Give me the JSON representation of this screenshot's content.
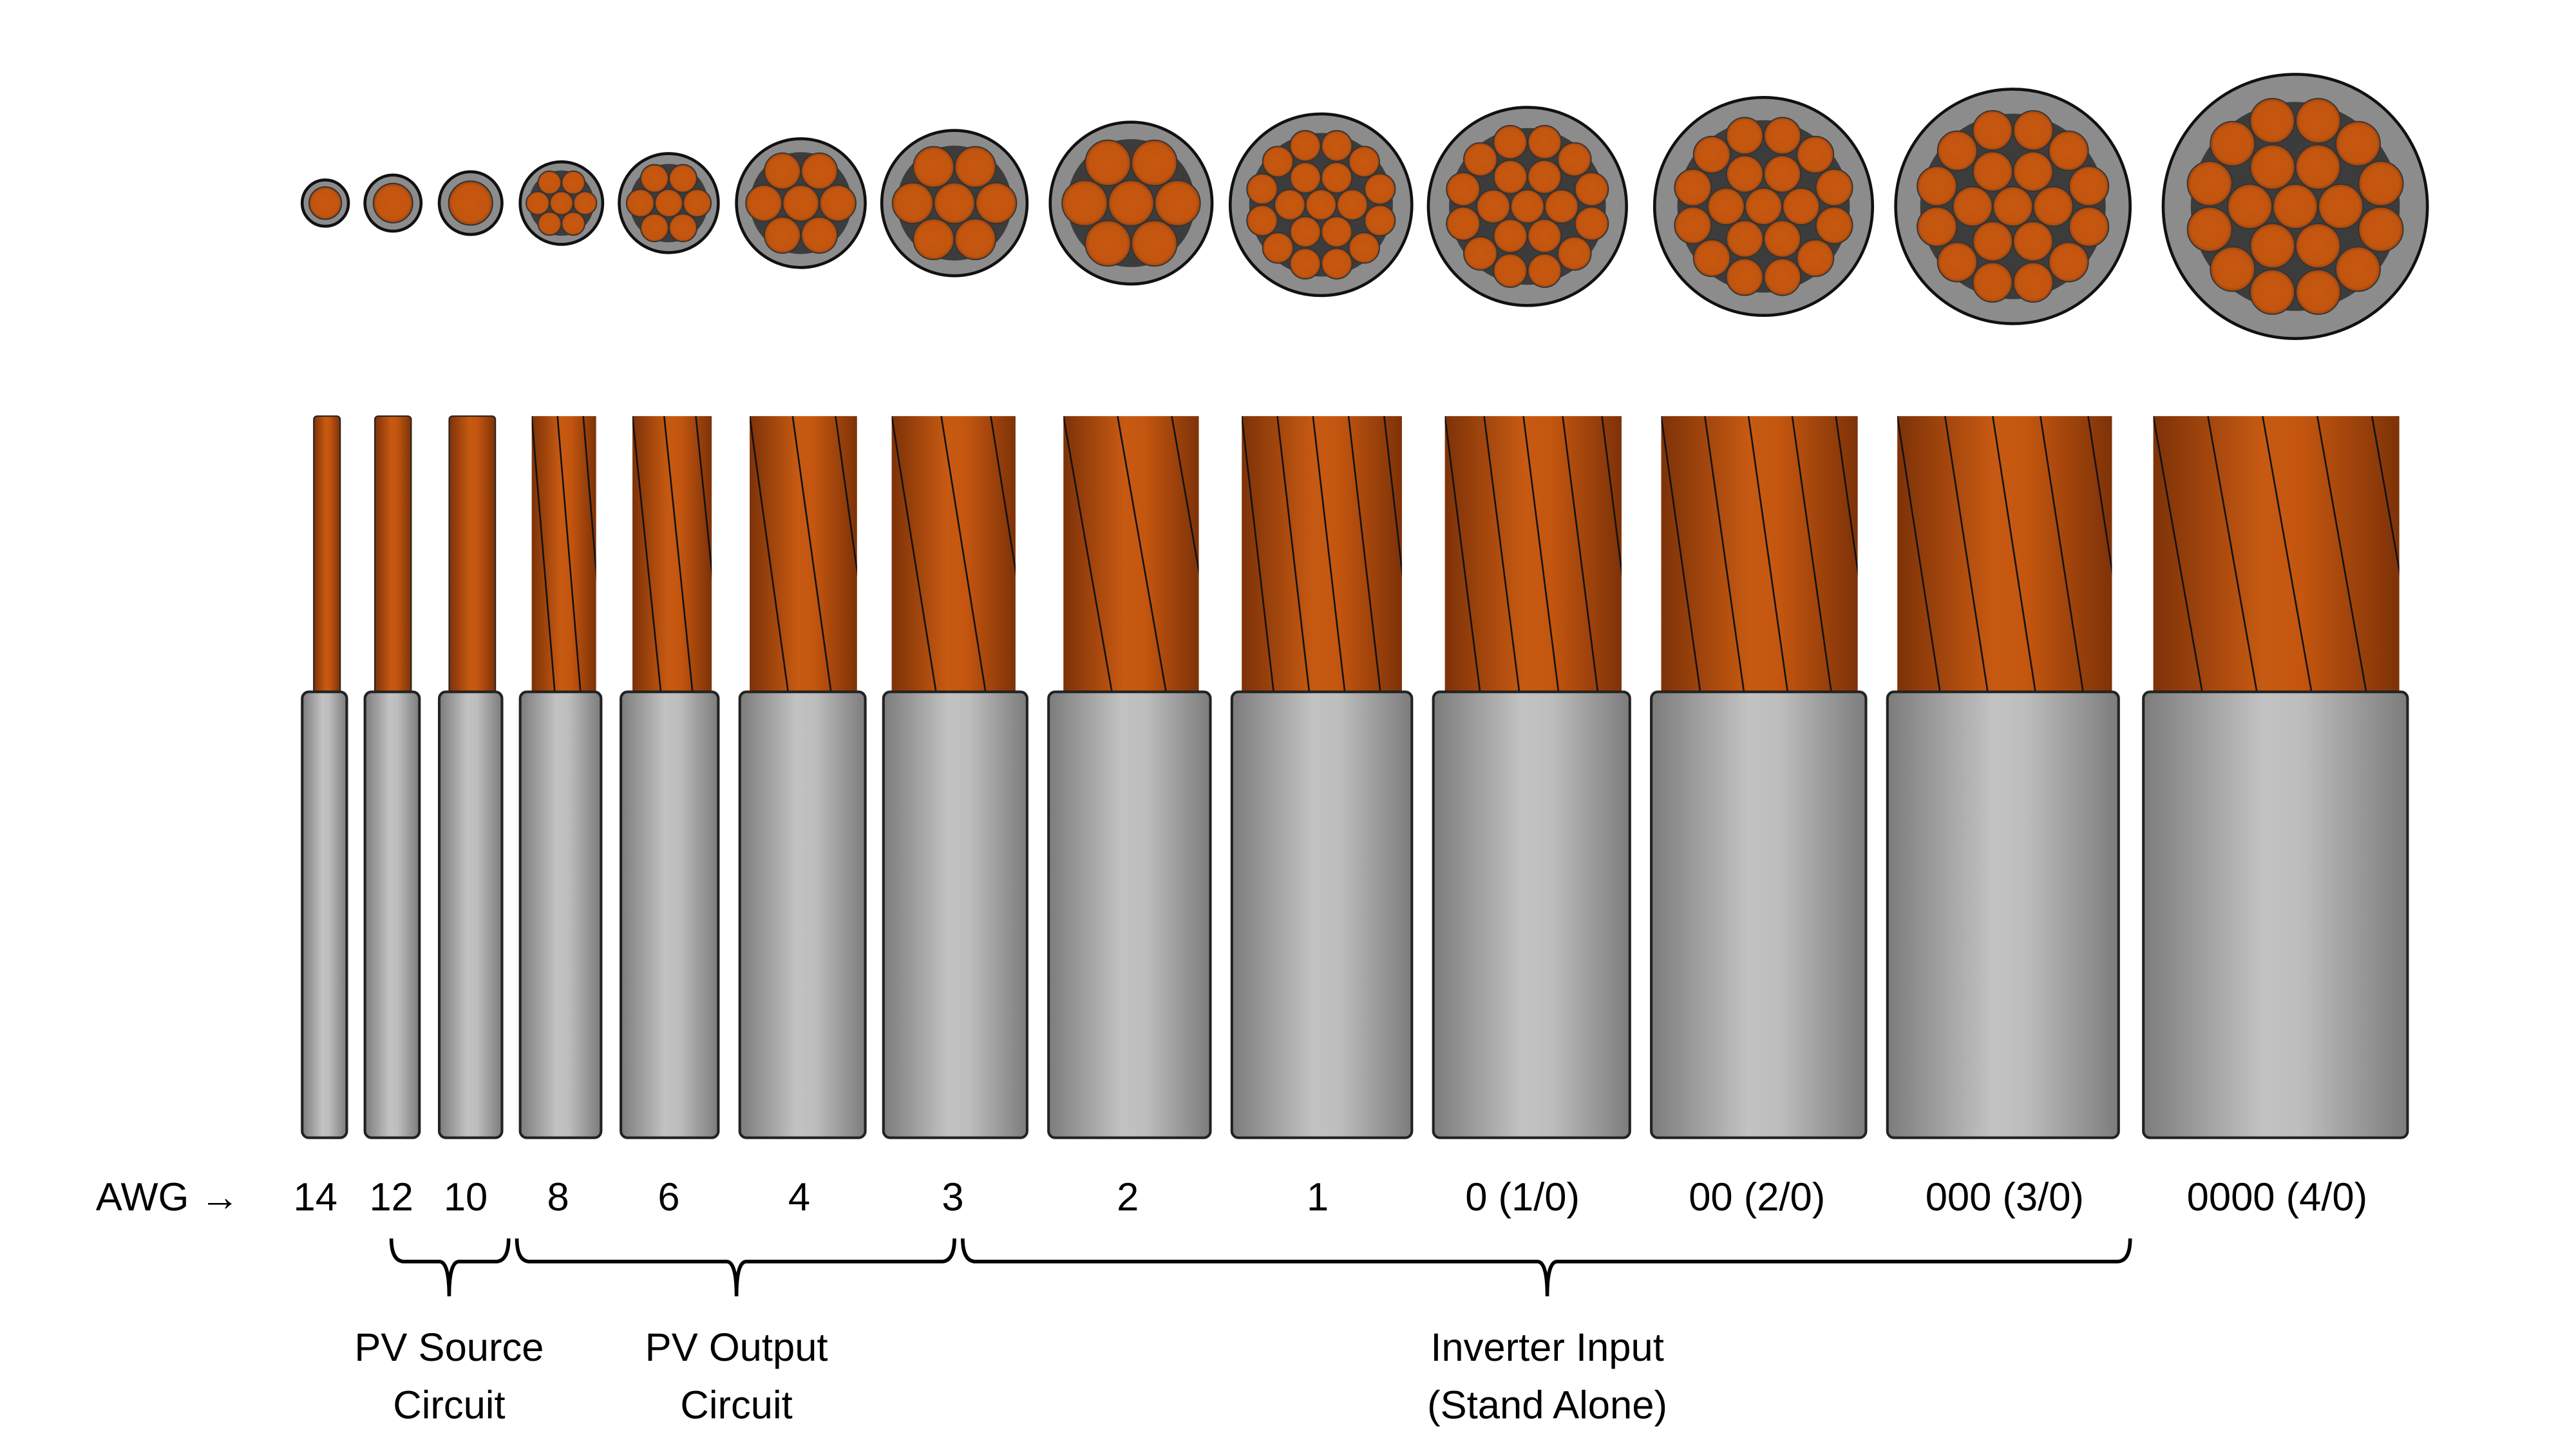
{
  "awg_prefix": "AWG →",
  "colors": {
    "copper": "#c4560f",
    "copper_dark": "#7e3208",
    "jacket_light": "#c2c2c2",
    "jacket_dark": "#7c7c7c",
    "cross_section_fill": "#8c8c8c",
    "strand_gap": "#3c3c3c"
  },
  "wires": [
    {
      "gauge": "14",
      "strands": 1
    },
    {
      "gauge": "12",
      "strands": 1
    },
    {
      "gauge": "10",
      "strands": 1
    },
    {
      "gauge": "8",
      "strands": 7
    },
    {
      "gauge": "6",
      "strands": 7
    },
    {
      "gauge": "4",
      "strands": 7
    },
    {
      "gauge": "3",
      "strands": 7
    },
    {
      "gauge": "2",
      "strands": 7
    },
    {
      "gauge": "1",
      "strands": 19
    },
    {
      "gauge": "0 (1/0)",
      "strands": 19
    },
    {
      "gauge": "00 (2/0)",
      "strands": 19
    },
    {
      "gauge": "000 (3/0)",
      "strands": 19
    },
    {
      "gauge": "0000 (4/0)",
      "strands": 19
    }
  ],
  "groups": [
    {
      "line1": "PV Source",
      "line2": "Circuit",
      "from_gauge": "12",
      "to_gauge": "10"
    },
    {
      "line1": "PV Output",
      "line2": "Circuit",
      "from_gauge": "8",
      "to_gauge": "3"
    },
    {
      "line1": "Inverter Input",
      "line2": "(Stand Alone)",
      "from_gauge": "3",
      "to_gauge": "000 (3/0)"
    }
  ]
}
